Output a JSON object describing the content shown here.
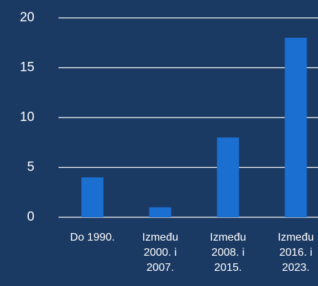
{
  "chart_data": {
    "type": "bar",
    "categories": [
      "Do 1990.",
      "Između 2000. i 2007.",
      "Između 2008. i 2015.",
      "Između 2016. i 2023."
    ],
    "values": [
      4,
      1,
      8,
      18
    ],
    "color": "#1a6fd1",
    "ylim": [
      0,
      20
    ],
    "yticks": [
      0,
      5,
      10,
      15,
      20
    ],
    "grid": true
  }
}
